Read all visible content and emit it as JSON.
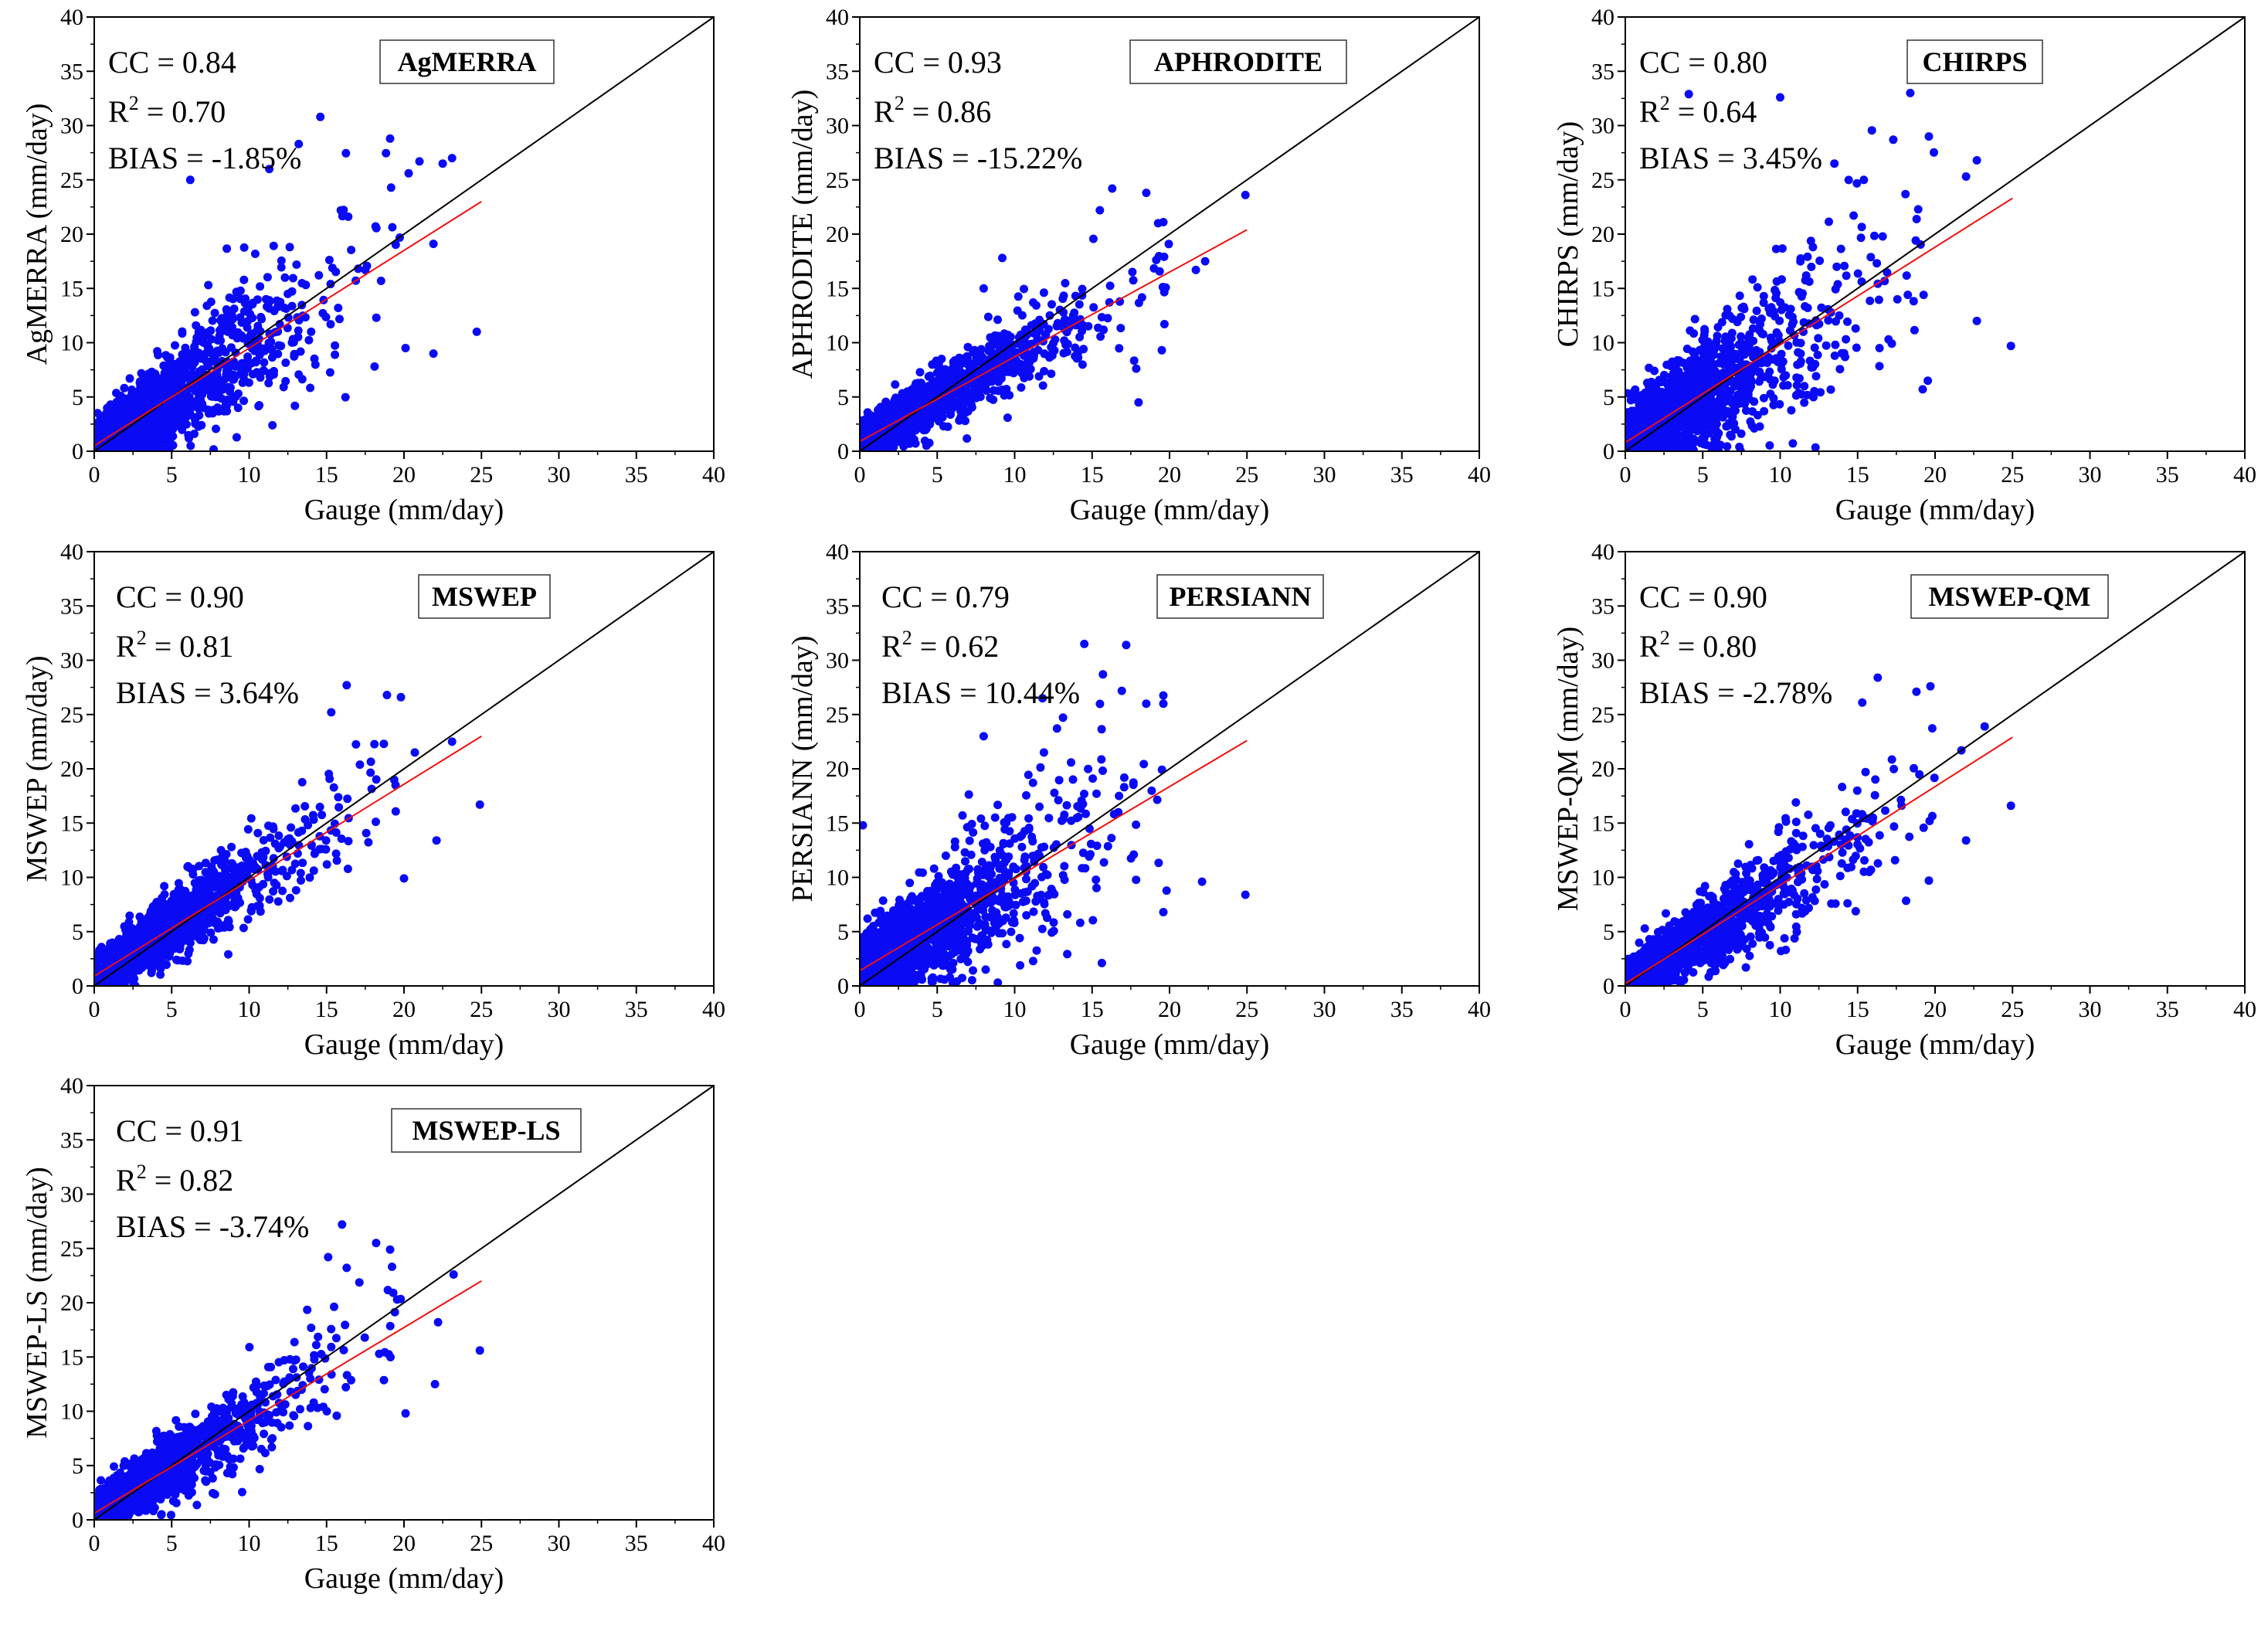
{
  "colors": {
    "points": "#0a0af5",
    "identity_line": "#000000",
    "fit_line": "#ee1111",
    "axes": "#000000"
  },
  "chart_data": [
    {
      "type": "scatter",
      "dataset": "AgMERRA",
      "xlabel": "Gauge (mm/day)",
      "ylabel": "AgMERRA (mm/day)",
      "xlim": [
        0,
        40
      ],
      "ylim": [
        0,
        40
      ],
      "xticks": [
        "0",
        "5",
        "10",
        "15",
        "20",
        "25",
        "30",
        "35",
        "40"
      ],
      "yticks": [
        "0",
        "5",
        "10",
        "15",
        "20",
        "25",
        "30",
        "35",
        "40"
      ],
      "stats": {
        "cc": "CC = 0.84",
        "r2": "= 0.70",
        "bias": "BIAS = -1.85%"
      },
      "fit_line": {
        "x": [
          0,
          25
        ],
        "y": [
          0.5,
          23.0
        ]
      },
      "identity_line": {
        "x": [
          0,
          40
        ],
        "y": [
          0,
          40
        ]
      },
      "scatter": {
        "n": 1700,
        "slope": 0.92,
        "intercept": 0.3,
        "noise": 3.2,
        "seed": 11,
        "outliers": [
          [
            14.6,
            30.8
          ],
          [
            11.3,
            26.0
          ],
          [
            13.2,
            28.3
          ],
          [
            19.1,
            28.8
          ],
          [
            21.0,
            26.7
          ],
          [
            22.5,
            26.5
          ],
          [
            23.1,
            27.0
          ],
          [
            20.3,
            25.6
          ],
          [
            24.7,
            11.0
          ],
          [
            21.9,
            9.0
          ],
          [
            20.1,
            9.5
          ],
          [
            18.1,
            7.8
          ],
          [
            6.2,
            25.0
          ],
          [
            16.4,
            21.6
          ],
          [
            21.9,
            19.1
          ]
        ]
      }
    },
    {
      "type": "scatter",
      "dataset": "APHRODITE",
      "xlabel": "Gauge (mm/day)",
      "ylabel": "APHRODITE (mm/day)",
      "xlim": [
        0,
        40
      ],
      "ylim": [
        0,
        40
      ],
      "xticks": [
        "0",
        "5",
        "10",
        "15",
        "20",
        "25",
        "30",
        "35",
        "40"
      ],
      "yticks": [
        "0",
        "5",
        "10",
        "15",
        "20",
        "25",
        "30",
        "35",
        "40"
      ],
      "stats": {
        "cc": "CC = 0.93",
        "r2": "= 0.86",
        "bias": "BIAS = -15.22%"
      },
      "fit_line": {
        "x": [
          0,
          25
        ],
        "y": [
          0.9,
          20.4
        ]
      },
      "identity_line": {
        "x": [
          0,
          40
        ],
        "y": [
          0,
          40
        ]
      },
      "scatter": {
        "n": 1700,
        "slope": 0.78,
        "intercept": 0.9,
        "noise": 1.8,
        "seed": 23,
        "outliers": [
          [
            16.3,
            24.2
          ],
          [
            18.5,
            23.8
          ],
          [
            24.9,
            23.6
          ],
          [
            15.5,
            22.2
          ],
          [
            19.6,
            21.1
          ],
          [
            22.3,
            17.5
          ],
          [
            21.7,
            16.7
          ],
          [
            19.5,
            9.3
          ],
          [
            18.0,
            4.5
          ],
          [
            8.0,
            15.0
          ],
          [
            9.2,
            17.8
          ]
        ]
      }
    },
    {
      "type": "scatter",
      "dataset": "CHIRPS",
      "xlabel": "Gauge (mm/day)",
      "ylabel": "CHIRPS (mm/day)",
      "xlim": [
        0,
        40
      ],
      "ylim": [
        0,
        40
      ],
      "xticks": [
        "0",
        "5",
        "10",
        "15",
        "20",
        "25",
        "30",
        "35",
        "40"
      ],
      "yticks": [
        "0",
        "5",
        "10",
        "15",
        "20",
        "25",
        "30",
        "35",
        "40"
      ],
      "stats": {
        "cc": "CC = 0.80",
        "r2": "= 0.64",
        "bias": "BIAS = 3.45%"
      },
      "fit_line": {
        "x": [
          0,
          25
        ],
        "y": [
          0.8,
          23.3
        ]
      },
      "identity_line": {
        "x": [
          0,
          40
        ],
        "y": [
          0,
          40
        ]
      },
      "scatter": {
        "n": 1700,
        "slope": 0.9,
        "intercept": 0.8,
        "noise": 3.6,
        "seed": 37,
        "outliers": [
          [
            18.4,
            33.0
          ],
          [
            10.0,
            32.6
          ],
          [
            4.1,
            32.9
          ],
          [
            17.3,
            28.7
          ],
          [
            22.7,
            26.8
          ],
          [
            22.0,
            25.3
          ],
          [
            19.6,
            29.0
          ],
          [
            24.9,
            9.7
          ],
          [
            22.7,
            12.0
          ],
          [
            19.2,
            5.7
          ],
          [
            13.5,
            26.5
          ],
          [
            15.4,
            25.0
          ]
        ]
      }
    },
    {
      "type": "scatter",
      "dataset": "MSWEP",
      "xlabel": "Gauge (mm/day)",
      "ylabel": "MSWEP (mm/day)",
      "xlim": [
        0,
        40
      ],
      "ylim": [
        0,
        40
      ],
      "xticks": [
        "0",
        "5",
        "10",
        "15",
        "20",
        "25",
        "30",
        "35",
        "40"
      ],
      "yticks": [
        "0",
        "5",
        "10",
        "15",
        "20",
        "25",
        "30",
        "35",
        "40"
      ],
      "stats": {
        "cc": "CC = 0.90",
        "r2": "= 0.81",
        "bias": "BIAS = 3.64%"
      },
      "fit_line": {
        "x": [
          0,
          25
        ],
        "y": [
          0.9,
          23.0
        ]
      },
      "identity_line": {
        "x": [
          0,
          40
        ],
        "y": [
          0,
          40
        ]
      },
      "scatter": {
        "n": 1700,
        "slope": 0.9,
        "intercept": 0.9,
        "noise": 2.1,
        "seed": 41,
        "outliers": [
          [
            16.3,
            27.7
          ],
          [
            18.9,
            26.8
          ],
          [
            19.8,
            26.6
          ],
          [
            15.3,
            25.2
          ],
          [
            23.1,
            22.5
          ],
          [
            24.9,
            16.7
          ],
          [
            22.1,
            13.4
          ],
          [
            20.0,
            9.9
          ],
          [
            18.7,
            22.3
          ],
          [
            20.7,
            21.5
          ]
        ]
      }
    },
    {
      "type": "scatter",
      "dataset": "PERSIANN",
      "xlabel": "Gauge (mm/day)",
      "ylabel": "PERSIANN (mm/day)",
      "xlim": [
        0,
        40
      ],
      "ylim": [
        0,
        40
      ],
      "xticks": [
        "0",
        "5",
        "10",
        "15",
        "20",
        "25",
        "30",
        "35",
        "40"
      ],
      "yticks": [
        "0",
        "5",
        "10",
        "15",
        "20",
        "25",
        "30",
        "35",
        "40"
      ],
      "stats": {
        "cc": "CC = 0.79",
        "r2": "= 0.62",
        "bias": "BIAS = 10.44%"
      },
      "fit_line": {
        "x": [
          0,
          25
        ],
        "y": [
          1.4,
          22.6
        ]
      },
      "identity_line": {
        "x": [
          0,
          40
        ],
        "y": [
          0,
          40
        ]
      },
      "scatter": {
        "n": 1700,
        "slope": 0.85,
        "intercept": 1.4,
        "noise": 3.5,
        "seed": 53,
        "outliers": [
          [
            14.5,
            31.5
          ],
          [
            17.2,
            31.4
          ],
          [
            15.7,
            28.7
          ],
          [
            18.5,
            26.0
          ],
          [
            19.6,
            26.0
          ],
          [
            24.9,
            8.4
          ],
          [
            22.1,
            9.6
          ],
          [
            19.6,
            6.8
          ],
          [
            0.2,
            14.8
          ],
          [
            8.0,
            23.0
          ],
          [
            11.8,
            26.5
          ]
        ]
      }
    },
    {
      "type": "scatter",
      "dataset": "MSWEP-QM",
      "xlabel": "Gauge (mm/day)",
      "ylabel": "MSWEP-QM (mm/day)",
      "xlim": [
        0,
        40
      ],
      "ylim": [
        0,
        40
      ],
      "xticks": [
        "0",
        "5",
        "10",
        "15",
        "20",
        "25",
        "30",
        "35",
        "40"
      ],
      "yticks": [
        "0",
        "5",
        "10",
        "15",
        "20",
        "25",
        "30",
        "35",
        "40"
      ],
      "stats": {
        "cc": "CC = 0.90",
        "r2": "= 0.80",
        "bias": "BIAS = -2.78%"
      },
      "fit_line": {
        "x": [
          0,
          25
        ],
        "y": [
          0.2,
          22.9
        ]
      },
      "identity_line": {
        "x": [
          0,
          40
        ],
        "y": [
          0,
          40
        ]
      },
      "scatter": {
        "n": 1700,
        "slope": 0.9,
        "intercept": 0.2,
        "noise": 2.2,
        "seed": 67,
        "outliers": [
          [
            16.3,
            28.4
          ],
          [
            19.7,
            27.6
          ],
          [
            18.8,
            27.1
          ],
          [
            15.3,
            26.1
          ],
          [
            23.2,
            23.9
          ],
          [
            24.9,
            16.6
          ],
          [
            22.0,
            13.4
          ],
          [
            19.6,
            9.7
          ],
          [
            21.7,
            21.7
          ]
        ]
      }
    },
    {
      "type": "scatter",
      "dataset": "MSWEP-LS",
      "xlabel": "Gauge (mm/day)",
      "ylabel": "MSWEP-LS (mm/day)",
      "xlim": [
        0,
        40
      ],
      "ylim": [
        0,
        40
      ],
      "xticks": [
        "0",
        "5",
        "10",
        "15",
        "20",
        "25",
        "30",
        "35",
        "40"
      ],
      "yticks": [
        "0",
        "5",
        "10",
        "15",
        "20",
        "25",
        "30",
        "35",
        "40"
      ],
      "stats": {
        "cc": "CC = 0.91",
        "r2": "= 0.82",
        "bias": "BIAS = -3.74%"
      },
      "fit_line": {
        "x": [
          0,
          25
        ],
        "y": [
          0.6,
          22.0
        ]
      },
      "identity_line": {
        "x": [
          0,
          40
        ],
        "y": [
          0,
          40
        ]
      },
      "scatter": {
        "n": 1700,
        "slope": 0.88,
        "intercept": 0.6,
        "noise": 2.1,
        "seed": 79,
        "outliers": [
          [
            16.0,
            27.2
          ],
          [
            15.1,
            24.2
          ],
          [
            18.2,
            25.5
          ],
          [
            19.1,
            24.9
          ],
          [
            23.2,
            22.6
          ],
          [
            24.9,
            15.6
          ],
          [
            22.0,
            12.5
          ],
          [
            20.1,
            9.8
          ],
          [
            22.2,
            18.2
          ]
        ]
      }
    }
  ]
}
